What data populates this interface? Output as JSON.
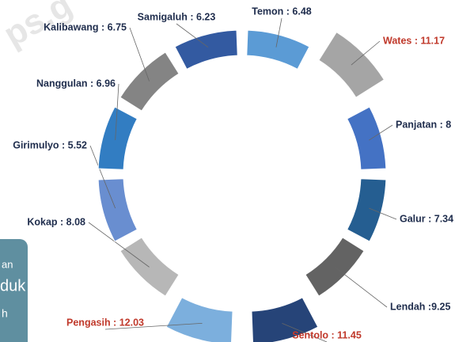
{
  "chart_data": {
    "type": "donut",
    "labels": [
      "Temon : 6.48",
      "Wates : 11.17",
      "Panjatan : 8",
      "Galur : 7.34",
      "Lendah :9.25",
      "Sentolo : 11.45",
      "Pengasih : 12.03",
      "Kokap : 8.08",
      "Girimulyo : 5.52",
      "Nanggulan : 6.96",
      "Kalibawang : 6.75",
      "Samigaluh : 6.23"
    ],
    "values": [
      6.48,
      11.17,
      8,
      7.34,
      9.25,
      11.45,
      12.03,
      8.08,
      5.52,
      6.96,
      6.75,
      6.23
    ],
    "colors": [
      "#5b9bd5",
      "#a5a5a5",
      "#4472c4",
      "#255e91",
      "#636363",
      "#264478",
      "#7cafdd",
      "#b7b7b7",
      "#698ed0",
      "#327dc2",
      "#848484",
      "#335aa1"
    ],
    "label_colors": [
      "#1f2d4d",
      "#c0392b",
      "#1f2d4d",
      "#1f2d4d",
      "#1f2d4d",
      "#c0392b",
      "#c0392b",
      "#1f2d4d",
      "#1f2d4d",
      "#1f2d4d",
      "#1f2d4d",
      "#1f2d4d"
    ]
  },
  "overlay": {
    "lines": [
      "an",
      "duk",
      "h"
    ]
  },
  "watermark": "ps.g"
}
